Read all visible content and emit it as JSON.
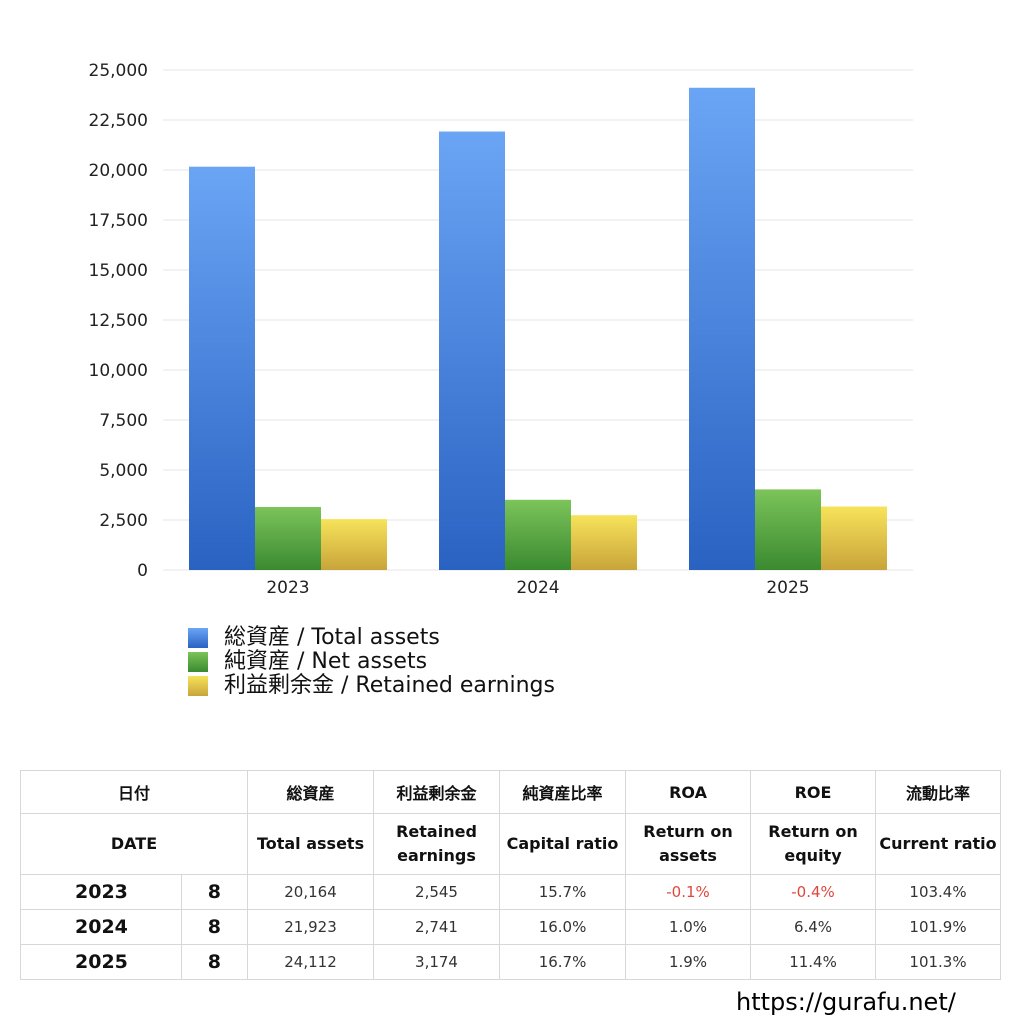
{
  "chart_data": {
    "type": "bar",
    "categories": [
      "2023",
      "2024",
      "2025"
    ],
    "series": [
      {
        "name": "総資産 / Total assets",
        "values": [
          20164,
          21923,
          24112
        ],
        "color_top": "#6aa5f5",
        "color_bottom": "#2a62c2"
      },
      {
        "name": "純資産 / Net assets",
        "values": [
          3150,
          3510,
          4030
        ],
        "color_top": "#7cc45a",
        "color_bottom": "#3a8a30"
      },
      {
        "name": "利益剰余金 / Retained earnings",
        "values": [
          2545,
          2741,
          3174
        ],
        "color_top": "#f7e35a",
        "color_bottom": "#c8a43a"
      }
    ],
    "ylim": [
      0,
      25000
    ],
    "yticks": [
      "0",
      "2,500",
      "5,000",
      "7,500",
      "10,000",
      "12,500",
      "15,000",
      "17,500",
      "20,000",
      "22,500",
      "25,000"
    ],
    "grid": true,
    "legend": "bottom"
  },
  "table": {
    "header_ja": [
      "日付",
      "",
      "総資産",
      "利益剰余金",
      "純資産比率",
      "ROA",
      "ROE",
      "流動比率"
    ],
    "header_en": [
      "DATE",
      "",
      "Total assets",
      "Retained\nearnings",
      "Capital ratio",
      "Return on\nassets",
      "Return on\nequity",
      "Current ratio"
    ],
    "rows": [
      {
        "year": "2023",
        "month": "8",
        "total_assets": "20,164",
        "retained_earnings": "2,545",
        "capital_ratio": "15.7%",
        "roa": "-0.1%",
        "roe": "-0.4%",
        "current_ratio": "103.4%"
      },
      {
        "year": "2024",
        "month": "8",
        "total_assets": "21,923",
        "retained_earnings": "2,741",
        "capital_ratio": "16.0%",
        "roa": "1.0%",
        "roe": "6.4%",
        "current_ratio": "101.9%"
      },
      {
        "year": "2025",
        "month": "8",
        "total_assets": "24,112",
        "retained_earnings": "3,174",
        "capital_ratio": "16.7%",
        "roa": "1.9%",
        "roe": "11.4%",
        "current_ratio": "101.3%"
      }
    ],
    "negative_color": "#e0463b"
  },
  "footer": {
    "url": "https://gurafu.net/"
  }
}
